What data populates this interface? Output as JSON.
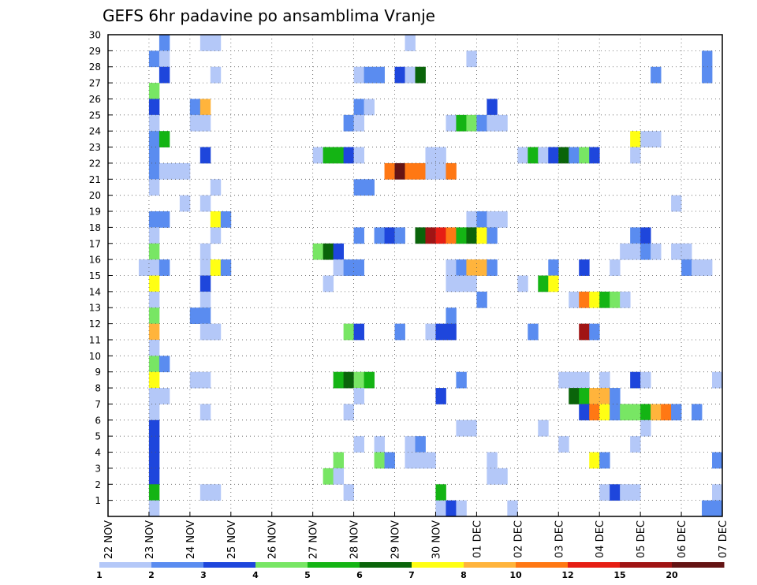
{
  "chart_data": {
    "type": "heatmap",
    "title": "GEFS 6hr padavine po ansamblima Vranje",
    "xlabel": "",
    "ylabel": "",
    "x_ticks": [
      "22 NOV",
      "23 NOV",
      "24 NOV",
      "25 NOV",
      "26 NOV",
      "27 NOV",
      "28 NOV",
      "29 NOV",
      "30 NOV",
      "01 DEC",
      "02 DEC",
      "03 DEC",
      "04 DEC",
      "05 DEC",
      "06 DEC",
      "07 DEC"
    ],
    "y_ticks": [
      "1",
      "2",
      "3",
      "4",
      "5",
      "6",
      "7",
      "8",
      "9",
      "10",
      "11",
      "12",
      "13",
      "14",
      "15",
      "16",
      "17",
      "18",
      "19",
      "20",
      "21",
      "22",
      "23",
      "24",
      "25",
      "26",
      "27",
      "28",
      "29",
      "30"
    ],
    "x_steps_per_tick": 4,
    "y_range": [
      0,
      30
    ],
    "grid": true,
    "legend": {
      "position": "bottom",
      "labels": [
        "1",
        "2",
        "3",
        "4",
        "5",
        "6",
        "7",
        "8",
        "10",
        "12",
        "15",
        "20"
      ],
      "colors": [
        "#b4c8f8",
        "#5a8cf0",
        "#1e46dc",
        "#78e664",
        "#14b414",
        "#0a640a",
        "#ffff14",
        "#ffb43c",
        "#ff7814",
        "#e61e14",
        "#a01414",
        "#641414"
      ]
    },
    "value_unit": "color class index 1-12",
    "cells": [
      [
        30,
        5,
        2
      ],
      [
        30,
        9,
        1
      ],
      [
        30,
        10,
        1
      ],
      [
        30,
        29,
        1
      ],
      [
        29,
        4,
        2
      ],
      [
        29,
        5,
        1
      ],
      [
        29,
        35,
        1
      ],
      [
        29,
        58,
        2
      ],
      [
        28,
        5,
        3
      ],
      [
        28,
        10,
        1
      ],
      [
        28,
        24,
        1
      ],
      [
        28,
        25,
        2
      ],
      [
        28,
        26,
        2
      ],
      [
        28,
        28,
        3
      ],
      [
        28,
        29,
        1
      ],
      [
        28,
        30,
        6
      ],
      [
        28,
        53,
        2
      ],
      [
        28,
        58,
        2
      ],
      [
        27,
        4,
        4
      ],
      [
        26,
        4,
        3
      ],
      [
        26,
        8,
        2
      ],
      [
        26,
        9,
        8
      ],
      [
        26,
        24,
        2
      ],
      [
        26,
        25,
        1
      ],
      [
        26,
        37,
        3
      ],
      [
        25,
        4,
        1
      ],
      [
        25,
        8,
        1
      ],
      [
        25,
        9,
        1
      ],
      [
        25,
        23,
        2
      ],
      [
        25,
        24,
        1
      ],
      [
        25,
        33,
        1
      ],
      [
        25,
        34,
        5
      ],
      [
        25,
        35,
        4
      ],
      [
        25,
        36,
        2
      ],
      [
        25,
        37,
        1
      ],
      [
        25,
        38,
        1
      ],
      [
        24,
        4,
        2
      ],
      [
        24,
        5,
        5
      ],
      [
        24,
        51,
        7
      ],
      [
        24,
        52,
        1
      ],
      [
        24,
        53,
        1
      ],
      [
        23,
        4,
        2
      ],
      [
        23,
        9,
        3
      ],
      [
        23,
        20,
        1
      ],
      [
        23,
        21,
        5
      ],
      [
        23,
        22,
        5
      ],
      [
        23,
        23,
        3
      ],
      [
        23,
        24,
        1
      ],
      [
        23,
        31,
        1
      ],
      [
        23,
        32,
        1
      ],
      [
        23,
        40,
        1
      ],
      [
        23,
        41,
        5
      ],
      [
        23,
        42,
        1
      ],
      [
        23,
        43,
        3
      ],
      [
        23,
        44,
        6
      ],
      [
        23,
        45,
        2
      ],
      [
        23,
        46,
        4
      ],
      [
        23,
        47,
        3
      ],
      [
        23,
        51,
        1
      ],
      [
        22,
        4,
        2
      ],
      [
        22,
        5,
        1
      ],
      [
        22,
        6,
        1
      ],
      [
        22,
        7,
        1
      ],
      [
        22,
        27,
        9
      ],
      [
        22,
        28,
        12
      ],
      [
        22,
        29,
        9
      ],
      [
        22,
        30,
        9
      ],
      [
        22,
        31,
        1
      ],
      [
        22,
        32,
        1
      ],
      [
        22,
        33,
        9
      ],
      [
        21,
        4,
        1
      ],
      [
        21,
        10,
        1
      ],
      [
        21,
        24,
        2
      ],
      [
        21,
        25,
        2
      ],
      [
        20,
        7,
        1
      ],
      [
        20,
        9,
        1
      ],
      [
        20,
        55,
        1
      ],
      [
        19,
        4,
        2
      ],
      [
        19,
        5,
        2
      ],
      [
        19,
        10,
        7
      ],
      [
        19,
        11,
        2
      ],
      [
        19,
        35,
        1
      ],
      [
        19,
        36,
        2
      ],
      [
        19,
        37,
        1
      ],
      [
        19,
        38,
        1
      ],
      [
        18,
        4,
        1
      ],
      [
        18,
        10,
        1
      ],
      [
        18,
        24,
        2
      ],
      [
        18,
        26,
        2
      ],
      [
        18,
        27,
        3
      ],
      [
        18,
        28,
        2
      ],
      [
        18,
        30,
        6
      ],
      [
        18,
        31,
        11
      ],
      [
        18,
        32,
        10
      ],
      [
        18,
        33,
        9
      ],
      [
        18,
        34,
        5
      ],
      [
        18,
        35,
        6
      ],
      [
        18,
        36,
        7
      ],
      [
        18,
        37,
        2
      ],
      [
        18,
        51,
        2
      ],
      [
        18,
        52,
        3
      ],
      [
        17,
        4,
        4
      ],
      [
        17,
        9,
        1
      ],
      [
        17,
        20,
        4
      ],
      [
        17,
        21,
        6
      ],
      [
        17,
        22,
        3
      ],
      [
        17,
        50,
        1
      ],
      [
        17,
        51,
        1
      ],
      [
        17,
        52,
        2
      ],
      [
        17,
        53,
        1
      ],
      [
        17,
        55,
        1
      ],
      [
        17,
        56,
        1
      ],
      [
        16,
        3,
        1
      ],
      [
        16,
        4,
        1
      ],
      [
        16,
        5,
        2
      ],
      [
        16,
        9,
        1
      ],
      [
        16,
        10,
        7
      ],
      [
        16,
        11,
        2
      ],
      [
        16,
        22,
        1
      ],
      [
        16,
        23,
        2
      ],
      [
        16,
        24,
        2
      ],
      [
        16,
        33,
        1
      ],
      [
        16,
        34,
        2
      ],
      [
        16,
        35,
        8
      ],
      [
        16,
        36,
        8
      ],
      [
        16,
        37,
        2
      ],
      [
        16,
        43,
        2
      ],
      [
        16,
        46,
        3
      ],
      [
        16,
        49,
        1
      ],
      [
        16,
        56,
        2
      ],
      [
        16,
        57,
        1
      ],
      [
        16,
        58,
        1
      ],
      [
        15,
        4,
        7
      ],
      [
        15,
        9,
        3
      ],
      [
        15,
        21,
        1
      ],
      [
        15,
        33,
        1
      ],
      [
        15,
        34,
        1
      ],
      [
        15,
        35,
        1
      ],
      [
        15,
        40,
        1
      ],
      [
        15,
        42,
        5
      ],
      [
        15,
        43,
        7
      ],
      [
        14,
        4,
        1
      ],
      [
        14,
        9,
        1
      ],
      [
        14,
        36,
        2
      ],
      [
        14,
        45,
        1
      ],
      [
        14,
        46,
        9
      ],
      [
        14,
        47,
        7
      ],
      [
        14,
        48,
        5
      ],
      [
        14,
        49,
        4
      ],
      [
        14,
        50,
        1
      ],
      [
        13,
        4,
        4
      ],
      [
        13,
        8,
        2
      ],
      [
        13,
        9,
        2
      ],
      [
        13,
        33,
        2
      ],
      [
        12,
        4,
        8
      ],
      [
        12,
        9,
        1
      ],
      [
        12,
        10,
        1
      ],
      [
        12,
        23,
        4
      ],
      [
        12,
        24,
        3
      ],
      [
        12,
        28,
        2
      ],
      [
        12,
        31,
        1
      ],
      [
        12,
        32,
        3
      ],
      [
        12,
        33,
        3
      ],
      [
        12,
        41,
        2
      ],
      [
        12,
        46,
        11
      ],
      [
        12,
        47,
        2
      ],
      [
        11,
        4,
        1
      ],
      [
        10,
        4,
        4
      ],
      [
        10,
        5,
        2
      ],
      [
        9,
        4,
        7
      ],
      [
        9,
        8,
        1
      ],
      [
        9,
        9,
        1
      ],
      [
        9,
        22,
        5
      ],
      [
        9,
        23,
        6
      ],
      [
        9,
        24,
        4
      ],
      [
        9,
        25,
        5
      ],
      [
        9,
        34,
        2
      ],
      [
        9,
        44,
        1
      ],
      [
        9,
        45,
        1
      ],
      [
        9,
        46,
        1
      ],
      [
        9,
        48,
        1
      ],
      [
        9,
        51,
        3
      ],
      [
        9,
        52,
        1
      ],
      [
        9,
        59,
        1
      ],
      [
        8,
        4,
        1
      ],
      [
        8,
        5,
        1
      ],
      [
        8,
        24,
        1
      ],
      [
        8,
        32,
        3
      ],
      [
        8,
        45,
        6
      ],
      [
        8,
        46,
        5
      ],
      [
        8,
        47,
        8
      ],
      [
        8,
        48,
        8
      ],
      [
        8,
        49,
        2
      ],
      [
        7,
        4,
        1
      ],
      [
        7,
        9,
        1
      ],
      [
        7,
        23,
        1
      ],
      [
        7,
        46,
        3
      ],
      [
        7,
        47,
        9
      ],
      [
        7,
        48,
        7
      ],
      [
        7,
        49,
        2
      ],
      [
        7,
        50,
        4
      ],
      [
        7,
        51,
        4
      ],
      [
        7,
        52,
        5
      ],
      [
        7,
        53,
        8
      ],
      [
        7,
        54,
        9
      ],
      [
        7,
        55,
        2
      ],
      [
        7,
        57,
        2
      ],
      [
        6,
        4,
        3
      ],
      [
        6,
        34,
        1
      ],
      [
        6,
        35,
        1
      ],
      [
        6,
        42,
        1
      ],
      [
        6,
        52,
        1
      ],
      [
        5,
        4,
        3
      ],
      [
        5,
        24,
        1
      ],
      [
        5,
        26,
        1
      ],
      [
        5,
        29,
        1
      ],
      [
        5,
        30,
        2
      ],
      [
        5,
        44,
        1
      ],
      [
        5,
        51,
        1
      ],
      [
        4,
        4,
        3
      ],
      [
        4,
        22,
        4
      ],
      [
        4,
        26,
        4
      ],
      [
        4,
        27,
        2
      ],
      [
        4,
        29,
        1
      ],
      [
        4,
        30,
        1
      ],
      [
        4,
        31,
        1
      ],
      [
        4,
        37,
        1
      ],
      [
        4,
        47,
        7
      ],
      [
        4,
        48,
        2
      ],
      [
        4,
        59,
        2
      ],
      [
        3,
        4,
        3
      ],
      [
        3,
        21,
        4
      ],
      [
        3,
        22,
        1
      ],
      [
        3,
        37,
        1
      ],
      [
        3,
        38,
        1
      ],
      [
        2,
        4,
        5
      ],
      [
        2,
        9,
        1
      ],
      [
        2,
        10,
        1
      ],
      [
        2,
        23,
        1
      ],
      [
        2,
        32,
        5
      ],
      [
        2,
        48,
        1
      ],
      [
        2,
        49,
        3
      ],
      [
        2,
        50,
        1
      ],
      [
        2,
        51,
        1
      ],
      [
        2,
        59,
        1
      ],
      [
        1,
        4,
        1
      ],
      [
        1,
        32,
        1
      ],
      [
        1,
        33,
        3
      ],
      [
        1,
        34,
        1
      ],
      [
        1,
        39,
        1
      ],
      [
        1,
        58,
        2
      ],
      [
        1,
        59,
        2
      ]
    ]
  }
}
